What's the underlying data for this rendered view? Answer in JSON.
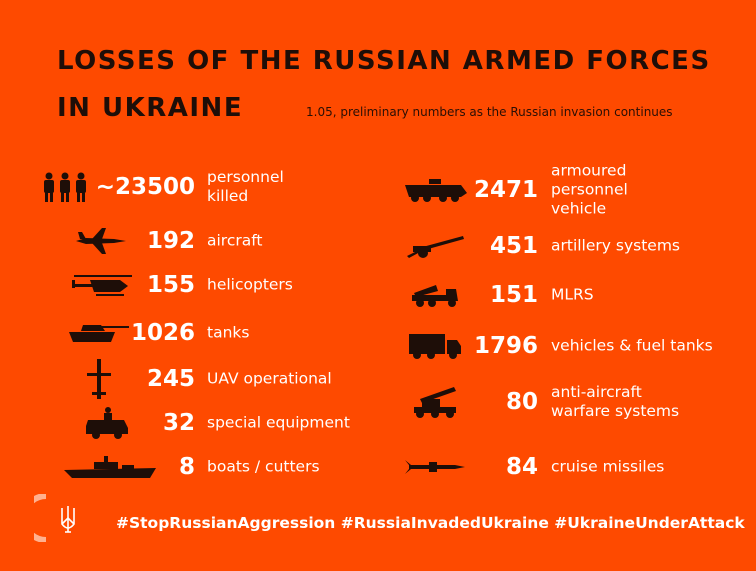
{
  "header": {
    "title_line1": "LOSSES OF THE RUSSIAN ARMED FORCES",
    "title_line2": "IN UKRAINE",
    "subtitle": "1.05, preliminary numbers as the Russian invasion continues"
  },
  "colors": {
    "background": "#fe4a00",
    "text_dark": "#1e0e08",
    "text_light": "#ffffff"
  },
  "left": [
    {
      "icon": "soldiers-icon",
      "value": "~23500",
      "label": "personnel\nkilled"
    },
    {
      "icon": "fighter-jet-icon",
      "value": "192",
      "label": "aircraft"
    },
    {
      "icon": "helicopter-icon",
      "value": "155",
      "label": "helicopters"
    },
    {
      "icon": "tank-icon",
      "value": "1026",
      "label": "tanks"
    },
    {
      "icon": "drone-icon",
      "value": "245",
      "label": "UAV operational"
    },
    {
      "icon": "special-vehicle-icon",
      "value": "32",
      "label": "special equipment"
    },
    {
      "icon": "warship-icon",
      "value": "8",
      "label": "boats / cutters"
    }
  ],
  "right": [
    {
      "icon": "apc-icon",
      "value": "2471",
      "label": "armoured\npersonnel\nvehicle"
    },
    {
      "icon": "artillery-icon",
      "value": "451",
      "label": "artillery systems"
    },
    {
      "icon": "mlrs-icon",
      "value": "151",
      "label": "MLRS"
    },
    {
      "icon": "truck-icon",
      "value": "1796",
      "label": "vehicles & fuel tanks"
    },
    {
      "icon": "anti-aircraft-icon",
      "value": "80",
      "label": "anti-aircraft\nwarfare systems"
    },
    {
      "icon": "cruise-missile-icon",
      "value": "84",
      "label": "cruise missiles"
    }
  ],
  "footer": {
    "hashtags": "#StopRussianAggression #RussiaInvadedUkraine #UkraineUnderAttack",
    "logo": "ukraine-trident-icon"
  }
}
